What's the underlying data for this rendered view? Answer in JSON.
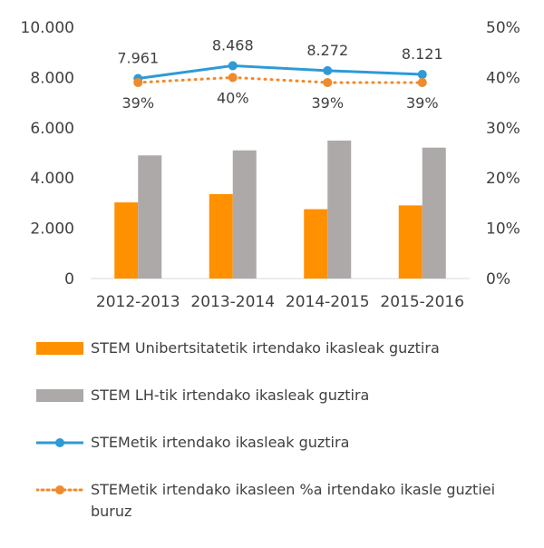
{
  "chart_data": {
    "type": "bar",
    "categories": [
      "2012-2013",
      "2013-2014",
      "2014-2015",
      "2015-2016"
    ],
    "series": [
      {
        "name": "STEM Unibertsitatetik irtendako ikasleak guztira",
        "kind": "bar",
        "axis": "left",
        "color": "#FF9000",
        "values": [
          3030,
          3360,
          2760,
          2910
        ]
      },
      {
        "name": "STEM LH-tik irtendako ikasleak guztira",
        "kind": "bar",
        "axis": "left",
        "color": "#ADA9A8",
        "values": [
          4900,
          5100,
          5490,
          5210
        ]
      },
      {
        "name": "STEMetik irtendako ikasleak guztira",
        "kind": "line",
        "axis": "left",
        "color": "#2E9AD6",
        "values": [
          7961,
          8468,
          8272,
          8121
        ],
        "labels": [
          "7.961",
          "8.468",
          "8.272",
          "8.121"
        ]
      },
      {
        "name": "STEMetik irtendako ikasleen %a irtendako ikasle guztiei buruz",
        "kind": "dotted-line",
        "axis": "right",
        "color": "#F08A2C",
        "values": [
          39,
          40,
          39,
          39
        ],
        "labels": [
          "39%",
          "40%",
          "39%",
          "39%"
        ]
      }
    ],
    "y_left": {
      "ylim": [
        0,
        10000
      ],
      "ticks": [
        "0",
        "2.000",
        "4.000",
        "6.000",
        "8.000",
        "10.000"
      ]
    },
    "y_right": {
      "ylim": [
        0,
        50
      ],
      "ticks": [
        "0%",
        "10%",
        "20%",
        "30%",
        "40%",
        "50%"
      ]
    },
    "grid": false,
    "legend_position": "bottom"
  }
}
